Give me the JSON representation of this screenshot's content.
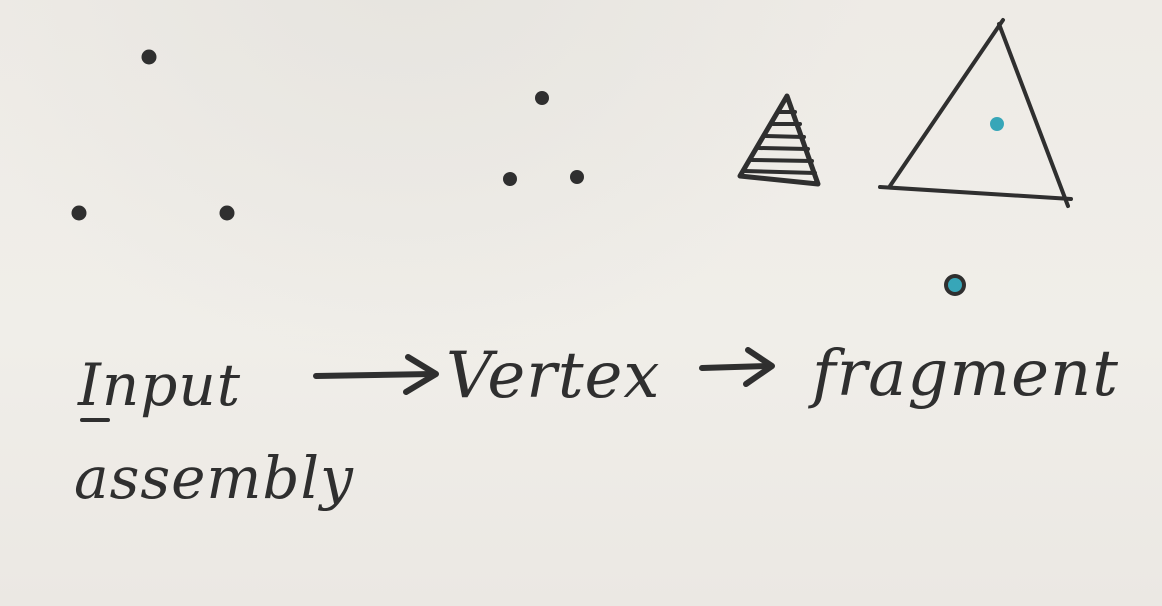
{
  "stages": {
    "input_assembly": {
      "line1": "Input",
      "line2": "assembly"
    },
    "vertex": {
      "label": "Vertex"
    },
    "fragment": {
      "label": "fragment"
    }
  },
  "colors": {
    "ink": "#2f2f2f",
    "paper": "#eeebe6",
    "fragment_dot": "#37a6b8"
  },
  "icons": {
    "input_points": "three-dot-cluster",
    "vertex_points": "three-dot-cluster",
    "rasterized_triangle": "hatched-triangle",
    "fragment_triangle": "triangle-with-dot",
    "fragment_sample": "teal-dot"
  }
}
